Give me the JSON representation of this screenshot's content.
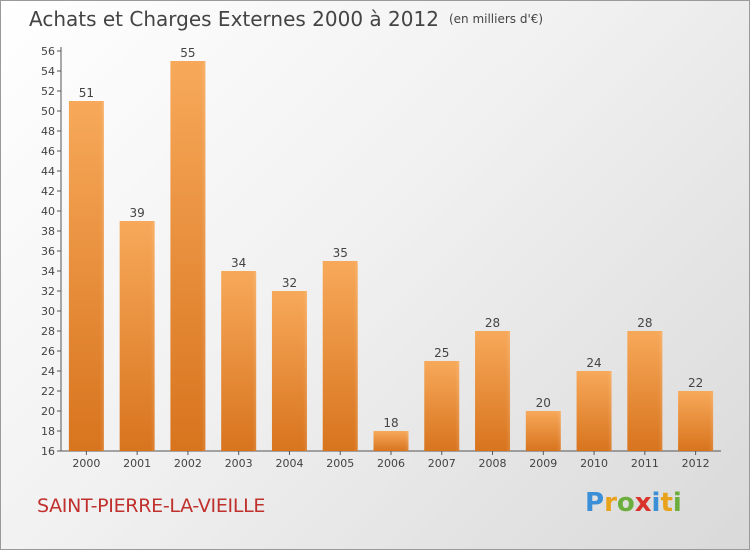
{
  "header": {
    "title": "Achats et Charges Externes 2000 à 2012",
    "unit": "(en milliers d'€)"
  },
  "footer": {
    "city": "SAINT-PIERRE-LA-VIEILLE",
    "logo": "Proxiti"
  },
  "colors": {
    "bar_light": "#f7a95a",
    "bar_dark": "#d8741e",
    "city": "#c0312e"
  },
  "chart_data": {
    "type": "bar",
    "categories": [
      "2000",
      "2001",
      "2002",
      "2003",
      "2004",
      "2005",
      "2006",
      "2007",
      "2008",
      "2009",
      "2010",
      "2011",
      "2012"
    ],
    "values": [
      51,
      39,
      55,
      34,
      32,
      35,
      18,
      25,
      28,
      20,
      24,
      28,
      22
    ],
    "title": "Achats et Charges Externes 2000 à 2012",
    "subtitle": "(en milliers d'€)",
    "ylim": [
      16,
      56
    ],
    "yticks": [
      16,
      18,
      20,
      22,
      24,
      26,
      28,
      30,
      32,
      34,
      36,
      38,
      40,
      42,
      44,
      46,
      48,
      50,
      52,
      54,
      56
    ],
    "grid": false,
    "data_labels": true
  }
}
